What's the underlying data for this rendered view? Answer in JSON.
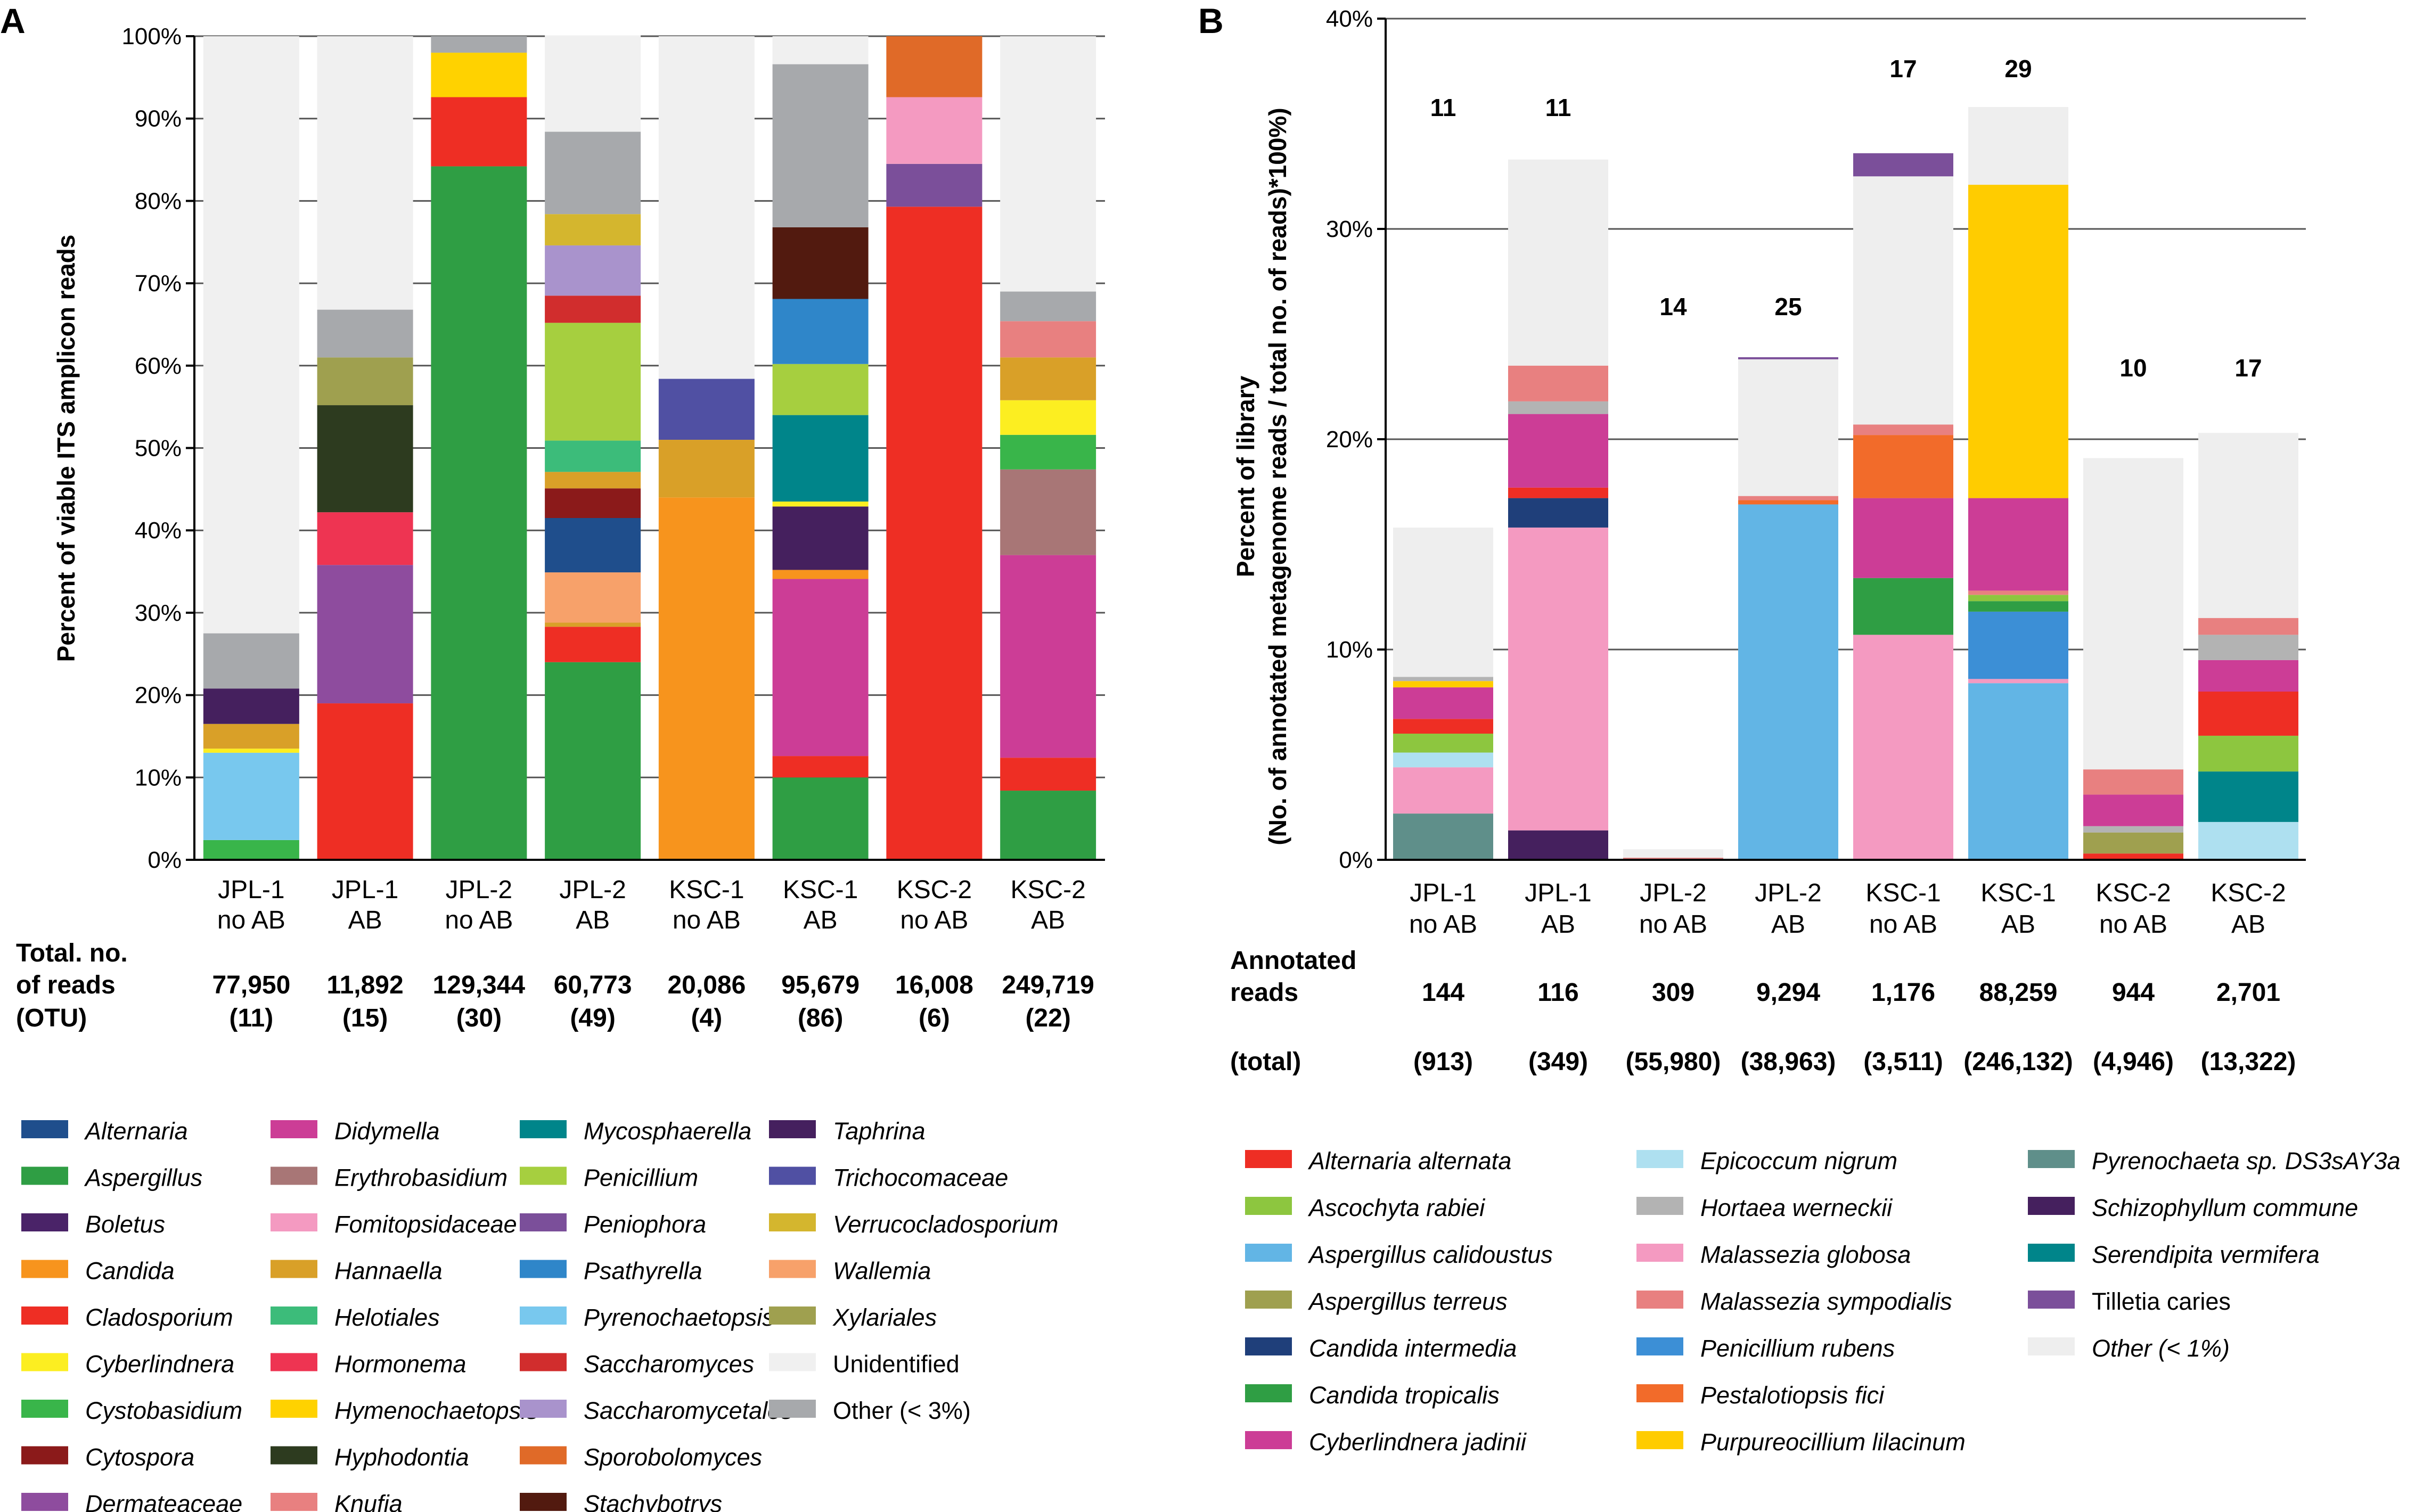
{
  "chart_data": [
    {
      "panel": "A",
      "type": "bar",
      "stacked": true,
      "ylabel": "Percent of viable ITS amplicon reads",
      "ylim": [
        0,
        100
      ],
      "yticks": [
        "0%",
        "10%",
        "20%",
        "30%",
        "40%",
        "50%",
        "60%",
        "70%",
        "80%",
        "90%",
        "100%"
      ],
      "categories": [
        [
          "JPL-1",
          "no AB"
        ],
        [
          "JPL-1",
          "AB"
        ],
        [
          "JPL-2",
          "no AB"
        ],
        [
          "JPL-2",
          "AB"
        ],
        [
          "KSC-1",
          "no AB"
        ],
        [
          "KSC-1",
          "AB"
        ],
        [
          "KSC-2",
          "no AB"
        ],
        [
          "KSC-2",
          "AB"
        ]
      ],
      "table_rows": [
        {
          "label": "Total. no.",
          "values": []
        },
        {
          "label": "of reads",
          "values": [
            "77,950",
            "11,892",
            "129,344",
            "60,773",
            "20,086",
            "95,679",
            "16,008",
            "249,719"
          ]
        },
        {
          "label": "(OTU)",
          "values": [
            "(11)",
            "(15)",
            "(30)",
            "(49)",
            "(4)",
            "(86)",
            "(6)",
            "(22)"
          ]
        }
      ],
      "legend": [
        {
          "name": "Alternaria",
          "color": "#1f4e8c",
          "italic": true
        },
        {
          "name": "Aspergillus",
          "color": "#2f9e44",
          "italic": true
        },
        {
          "name": "Boletus",
          "color": "#4a2368",
          "italic": true
        },
        {
          "name": "Candida",
          "color": "#f7941d",
          "italic": true
        },
        {
          "name": "Cladosporium",
          "color": "#ee2e24",
          "italic": true
        },
        {
          "name": "Cyberlindnera",
          "color": "#fcee21",
          "italic": true
        },
        {
          "name": "Cystobasidium",
          "color": "#39b54a",
          "italic": true
        },
        {
          "name": "Cytospora",
          "color": "#8b1a1a",
          "italic": true
        },
        {
          "name": "Dermateaceae",
          "color": "#8e4c9e",
          "italic": true
        },
        {
          "name": "Didymella",
          "color": "#cc3d96",
          "italic": true
        },
        {
          "name": "Erythrobasidium",
          "color": "#a87676",
          "italic": true
        },
        {
          "name": "Fomitopsidaceae",
          "color": "#f49ac1",
          "italic": true
        },
        {
          "name": "Hannaella",
          "color": "#d9a028",
          "italic": true
        },
        {
          "name": "Helotiales",
          "color": "#3cbc7a",
          "italic": true
        },
        {
          "name": "Hormonema",
          "color": "#ee3452",
          "italic": true
        },
        {
          "name": "Hymenochaetopsis",
          "color": "#ffd200",
          "italic": true
        },
        {
          "name": "Hyphodontia",
          "color": "#2d3b1f",
          "italic": true
        },
        {
          "name": "Knufia",
          "color": "#e88080",
          "italic": true
        },
        {
          "name": "Mycosphaerella",
          "color": "#00858a",
          "italic": true
        },
        {
          "name": "Penicillium",
          "color": "#a6cf3f",
          "italic": true
        },
        {
          "name": "Peniophora",
          "color": "#7b4f9a",
          "italic": true
        },
        {
          "name": "Psathyrella",
          "color": "#2f86c9",
          "italic": true
        },
        {
          "name": "Pyrenochaetopsis",
          "color": "#78c8ee",
          "italic": true
        },
        {
          "name": "Saccharomyces",
          "color": "#d12d2d",
          "italic": true
        },
        {
          "name": "Saccharomycetales",
          "color": "#a993cc",
          "italic": true
        },
        {
          "name": "Sporobolomyces",
          "color": "#e06a28",
          "italic": true
        },
        {
          "name": "Stachybotrys",
          "color": "#521a0f",
          "italic": true
        },
        {
          "name": "Taphrina",
          "color": "#45205e",
          "italic": true
        },
        {
          "name": "Trichocomaceae",
          "color": "#5050a3",
          "italic": true
        },
        {
          "name": "Verrucocladosporium",
          "color": "#d4b62e",
          "italic": true
        },
        {
          "name": "Wallemia",
          "color": "#f7a16a",
          "italic": true
        },
        {
          "name": "Xylariales",
          "color": "#9fa04f",
          "italic": true
        },
        {
          "name": "Unidentified",
          "color": "#f0f0f0",
          "italic": false
        },
        {
          "name": "Other (< 3%)",
          "color": "#a7a9ac",
          "italic": false
        }
      ],
      "series": [
        {
          "category": "JPL-1 no AB",
          "segments": [
            [
              "Cystobasidium",
              2.4
            ],
            [
              "Pyrenochaetopsis",
              10.6
            ],
            [
              "Cyberlindnera",
              0.5
            ],
            [
              "Hannaella",
              3
            ],
            [
              "Taphrina",
              4.3
            ],
            [
              "Other (< 3%)",
              6.7
            ],
            [
              "Unidentified",
              72.5
            ]
          ]
        },
        {
          "category": "JPL-1 AB",
          "segments": [
            [
              "Cladosporium",
              19
            ],
            [
              "Dermateaceae",
              16.8
            ],
            [
              "Hormonema",
              6.4
            ],
            [
              "Hyphodontia",
              13
            ],
            [
              "Xylariales",
              5.8
            ],
            [
              "Other (< 3%)",
              5.8
            ],
            [
              "Unidentified",
              33.2
            ]
          ]
        },
        {
          "category": "JPL-2 no AB",
          "segments": [
            [
              "Aspergillus",
              84.2
            ],
            [
              "Cladosporium",
              8.4
            ],
            [
              "Hymenochaetopsis",
              5.4
            ],
            [
              "Other (< 3%)",
              2
            ]
          ]
        },
        {
          "category": "JPL-2 AB",
          "segments": [
            [
              "Aspergillus",
              24
            ],
            [
              "Cladosporium",
              4.3
            ],
            [
              "Hannaella",
              0.5
            ],
            [
              "Wallemia",
              6.1
            ],
            [
              "Alternaria",
              6.6
            ],
            [
              "Cytospora",
              3.6
            ],
            [
              "Hannaella",
              2
            ],
            [
              "Helotiales",
              3.8
            ],
            [
              "Penicillium",
              14.3
            ],
            [
              "Saccharomyces",
              3.3
            ],
            [
              "Saccharomycetales",
              6.1
            ],
            [
              "Verrucocladosporium",
              3.8
            ],
            [
              "Other (< 3%)",
              10
            ],
            [
              "Unidentified",
              11.7
            ]
          ]
        },
        {
          "category": "KSC-1 no AB",
          "segments": [
            [
              "Candida",
              44
            ],
            [
              "Hannaella",
              7
            ],
            [
              "Trichocomaceae",
              7.4
            ],
            [
              "Unidentified",
              41.6
            ]
          ]
        },
        {
          "category": "KSC-1 AB",
          "segments": [
            [
              "Aspergillus",
              10
            ],
            [
              "Cladosporium",
              2.6
            ],
            [
              "Didymella",
              21.5
            ],
            [
              "Candida",
              1.1
            ],
            [
              "Taphrina",
              7.7
            ],
            [
              "Cyberlindnera",
              0.6
            ],
            [
              "Mycosphaerella",
              10.5
            ],
            [
              "Penicillium",
              6.2
            ],
            [
              "Psathyrella",
              7.9
            ],
            [
              "Stachybotrys",
              8.7
            ],
            [
              "Other (< 3%)",
              19.8
            ],
            [
              "Unidentified",
              3.4
            ]
          ]
        },
        {
          "category": "KSC-2 no AB",
          "segments": [
            [
              "Cladosporium",
              79.3
            ],
            [
              "Peniophora",
              5.2
            ],
            [
              "Fomitopsidaceae",
              8.1
            ],
            [
              "Sporobolomyces",
              7.4
            ]
          ]
        },
        {
          "category": "KSC-2 AB",
          "segments": [
            [
              "Aspergillus",
              8.4
            ],
            [
              "Cladosporium",
              4
            ],
            [
              "Didymella",
              24.6
            ],
            [
              "Erythrobasidium",
              10.4
            ],
            [
              "Cystobasidium",
              4.2
            ],
            [
              "Cyberlindnera",
              4.2
            ],
            [
              "Hannaella",
              5.2
            ],
            [
              "Knufia",
              4.4
            ],
            [
              "Other (< 3%)",
              3.6
            ],
            [
              "Unidentified",
              31
            ]
          ]
        }
      ]
    },
    {
      "panel": "B",
      "type": "bar",
      "stacked": true,
      "ylabel_lines": [
        "Percent of library",
        "(No. of annotated metagenome reads / total no. of reads)*100%)"
      ],
      "ylim": [
        0,
        40
      ],
      "yticks": [
        "0%",
        "10%",
        "20%",
        "30%",
        "40%"
      ],
      "categories": [
        [
          "JPL-1",
          "no AB"
        ],
        [
          "JPL-1",
          "AB"
        ],
        [
          "JPL-2",
          "no AB"
        ],
        [
          "JPL-2",
          "AB"
        ],
        [
          "KSC-1",
          "no AB"
        ],
        [
          "KSC-1",
          "AB"
        ],
        [
          "KSC-2",
          "no AB"
        ],
        [
          "KSC-2",
          "AB"
        ]
      ],
      "top_labels": [
        "11",
        "11",
        "14",
        "25",
        "17",
        "29",
        "10",
        "17"
      ],
      "table_rows": [
        {
          "label": "Annotated",
          "values": []
        },
        {
          "label": "reads",
          "values": [
            "144",
            "116",
            "309",
            "9,294",
            "1,176",
            "88,259",
            "944",
            "2,701"
          ]
        },
        {
          "label": "(total)",
          "values": [
            "(913)",
            "(349)",
            "(55,980)",
            "(38,963)",
            "(3,511)",
            "(246,132)",
            "(4,946)",
            "(13,322)"
          ]
        }
      ],
      "legend": [
        {
          "name": "Alternaria alternata",
          "color": "#ee2e24",
          "italic": true
        },
        {
          "name": "Ascochyta rabiei",
          "color": "#8dc63f",
          "italic": true
        },
        {
          "name": "Aspergillus calidoustus",
          "color": "#62b5e5",
          "italic": true
        },
        {
          "name": "Aspergillus terreus",
          "color": "#9fa04f",
          "italic": true
        },
        {
          "name": "Candida intermedia",
          "color": "#1f3f7a",
          "italic": true
        },
        {
          "name": "Candida tropicalis",
          "color": "#2f9e44",
          "italic": true
        },
        {
          "name": "Cyberlindnera jadinii",
          "color": "#cc3d96",
          "italic": true
        },
        {
          "name": "Epicoccum nigrum",
          "color": "#aee0f0",
          "italic": true
        },
        {
          "name": "Hortaea werneckii",
          "color": "#b3b3b3",
          "italic": true
        },
        {
          "name": "Malassezia globosa",
          "color": "#f49ac1",
          "italic": true
        },
        {
          "name": "Malassezia sympodialis",
          "color": "#e88080",
          "italic": true
        },
        {
          "name": "Penicillium rubens",
          "color": "#3c8fd6",
          "italic": true
        },
        {
          "name": "Pestalotiopsis fici",
          "color": "#f26b2a",
          "italic": true
        },
        {
          "name": "Purpureocillium lilacinum",
          "color": "#ffcc00",
          "italic": true
        },
        {
          "name": "Pyrenochaeta sp. DS3sAY3a",
          "color": "#5f8f8a",
          "italic": true
        },
        {
          "name": "Schizophyllum commune",
          "color": "#45205e",
          "italic": true
        },
        {
          "name": "Serendipita vermifera",
          "color": "#00858a",
          "italic": true
        },
        {
          "name": "Tilletia caries",
          "color": "#7b4f9a",
          "italic": false
        },
        {
          "name": "Other (< 1%)",
          "color": "#eeeeee",
          "italic": true
        }
      ],
      "series": [
        {
          "category": "JPL-1 no AB",
          "segments": [
            [
              "Pyrenochaeta sp. DS3sAY3a",
              2.2
            ],
            [
              "Malassezia globosa",
              2.2
            ],
            [
              "Epicoccum nigrum",
              0.7
            ],
            [
              "Ascochyta rabiei",
              0.9
            ],
            [
              "Alternaria alternata",
              0.7
            ],
            [
              "Cyberlindnera jadinii",
              1.5
            ],
            [
              "Purpureocillium lilacinum",
              0.3
            ],
            [
              "Hortaea werneckii",
              0.2
            ],
            [
              "Other (< 1%)",
              7.1
            ]
          ]
        },
        {
          "category": "JPL-1 AB",
          "segments": [
            [
              "Schizophyllum commune",
              1.4
            ],
            [
              "Malassezia globosa",
              14.4
            ],
            [
              "Candida intermedia",
              1.4
            ],
            [
              "Alternaria alternata",
              0.5
            ],
            [
              "Cyberlindnera jadinii",
              3.5
            ],
            [
              "Hortaea werneckii",
              0.6
            ],
            [
              "Malassezia sympodialis",
              1.7
            ],
            [
              "Other (< 1%)",
              9.8
            ]
          ]
        },
        {
          "category": "JPL-2 no AB",
          "segments": [
            [
              "Malassezia sympodialis",
              0.1
            ],
            [
              "Other (< 1%)",
              0.4
            ]
          ]
        },
        {
          "category": "JPL-2 AB",
          "segments": [
            [
              "Aspergillus calidoustus",
              16.9
            ],
            [
              "Pestalotiopsis fici",
              0.2
            ],
            [
              "Malassezia sympodialis",
              0.2
            ],
            [
              "Other (< 1%)",
              6.5
            ],
            [
              "Peniophora",
              0.1
            ]
          ]
        },
        {
          "category": "KSC-1 no AB",
          "segments": [
            [
              "Malassezia globosa",
              10.7
            ],
            [
              "Candida tropicalis",
              2.7
            ],
            [
              "Cyberlindnera jadinii",
              3.8
            ],
            [
              "Pestalotiopsis fici",
              3
            ],
            [
              "Malassezia sympodialis",
              0.5
            ],
            [
              "Other (< 1%)",
              11.8
            ],
            [
              "Tilletia caries",
              1.1
            ]
          ]
        },
        {
          "category": "KSC-1 AB",
          "segments": [
            [
              "Aspergillus calidoustus",
              8.4
            ],
            [
              "Malassezia globosa",
              0.2
            ],
            [
              "Penicillium rubens",
              3.2
            ],
            [
              "Candida tropicalis",
              0.5
            ],
            [
              "Ascochyta rabiei",
              0.3
            ],
            [
              "Malassezia sympodialis",
              0.2
            ],
            [
              "Cyberlindnera jadinii",
              4.4
            ],
            [
              "Purpureocillium lilacinum",
              14.9
            ],
            [
              "Other (< 1%)",
              3.7
            ]
          ]
        },
        {
          "category": "KSC-2 no AB",
          "segments": [
            [
              "Alternaria alternata",
              0.3
            ],
            [
              "Aspergillus terreus",
              1
            ],
            [
              "Hortaea werneckii",
              0.3
            ],
            [
              "Cyberlindnera jadinii",
              1.5
            ],
            [
              "Malassezia sympodialis",
              1.2
            ],
            [
              "Other (< 1%)",
              14.8
            ]
          ]
        },
        {
          "category": "KSC-2 AB",
          "segments": [
            [
              "Epicoccum nigrum",
              1.8
            ],
            [
              "Serendipita vermifera",
              2.4
            ],
            [
              "Ascochyta rabiei",
              1.7
            ],
            [
              "Alternaria alternata",
              2.1
            ],
            [
              "Cyberlindnera jadinii",
              1.5
            ],
            [
              "Hortaea werneckii",
              1.2
            ],
            [
              "Malassezia sympodialis",
              0.8
            ],
            [
              "Other (< 1%)",
              8.8
            ]
          ]
        }
      ]
    }
  ],
  "panels": {
    "a_letter": "A",
    "b_letter": "B"
  }
}
